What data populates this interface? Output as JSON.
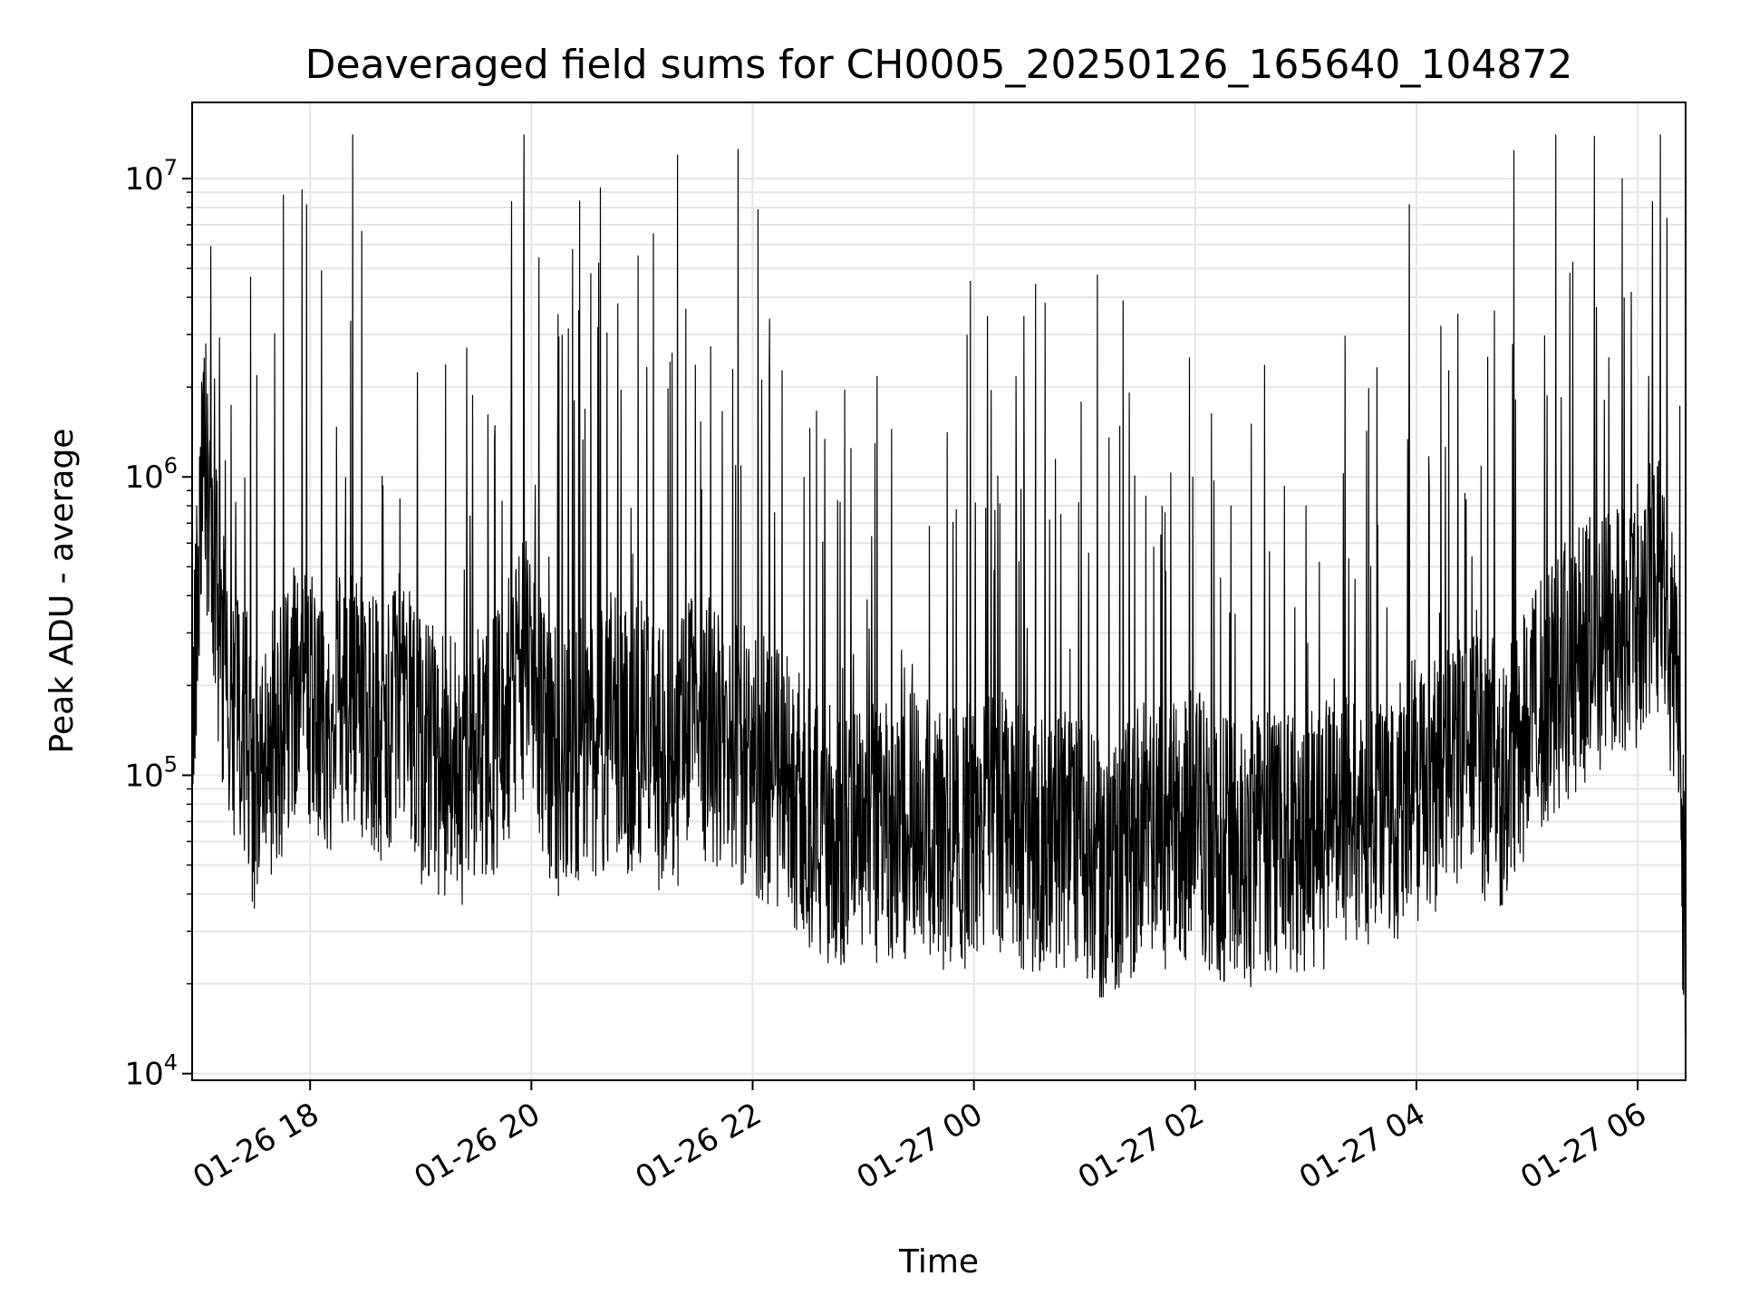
{
  "chart_data": {
    "type": "line",
    "title": "Deaveraged field sums for CH0005_20250126_165640_104872",
    "xlabel": "Time",
    "ylabel": "Peak ADU - average",
    "yscale": "log",
    "ylim": [
      9500,
      18000000
    ],
    "xlim": [
      "2025-01-26 16:56",
      "2025-01-27 06:26"
    ],
    "grid": true,
    "line_color": "#000000",
    "grid_color": "#e6e6e6",
    "x_ticks": [
      {
        "value": "2025-01-26 18:00",
        "label": "01-26 18"
      },
      {
        "value": "2025-01-26 20:00",
        "label": "01-26 20"
      },
      {
        "value": "2025-01-26 22:00",
        "label": "01-26 22"
      },
      {
        "value": "2025-01-27 00:00",
        "label": "01-27 00"
      },
      {
        "value": "2025-01-27 02:00",
        "label": "01-27 02"
      },
      {
        "value": "2025-01-27 04:00",
        "label": "01-27 04"
      },
      {
        "value": "2025-01-27 06:00",
        "label": "01-27 06"
      }
    ],
    "y_ticks": [
      {
        "value": 10000,
        "base": "10",
        "exp": "4"
      },
      {
        "value": 100000,
        "base": "10",
        "exp": "5"
      },
      {
        "value": 1000000,
        "base": "10",
        "exp": "6"
      },
      {
        "value": 10000000,
        "base": "10",
        "exp": "7"
      }
    ],
    "series": [
      {
        "x": [
          "2025-01-26 16:56",
          "2025-01-26 17:03",
          "2025-01-26 17:08",
          "2025-01-26 17:13",
          "2025-01-26 17:18",
          "2025-01-26 17:24",
          "2025-01-26 17:30",
          "2025-01-26 17:36",
          "2025-01-26 17:42",
          "2025-01-26 17:48",
          "2025-01-26 18:00",
          "2025-01-26 18:10",
          "2025-01-26 18:20",
          "2025-01-26 18:30",
          "2025-01-26 18:40",
          "2025-01-26 18:50",
          "2025-01-26 19:00",
          "2025-01-26 19:10",
          "2025-01-26 19:20",
          "2025-01-26 19:30",
          "2025-01-26 19:40",
          "2025-01-26 19:50",
          "2025-01-26 19:58",
          "2025-01-26 20:05",
          "2025-01-26 20:15",
          "2025-01-26 20:25",
          "2025-01-26 20:35",
          "2025-01-26 20:45",
          "2025-01-26 20:51",
          "2025-01-26 21:00",
          "2025-01-26 21:10",
          "2025-01-26 21:20",
          "2025-01-26 21:30",
          "2025-01-26 21:40",
          "2025-01-26 21:50",
          "2025-01-26 22:00",
          "2025-01-26 22:15",
          "2025-01-26 22:30",
          "2025-01-26 22:45",
          "2025-01-26 23:00",
          "2025-01-26 23:15",
          "2025-01-26 23:30",
          "2025-01-26 23:45",
          "2025-01-27 00:00",
          "2025-01-27 00:15",
          "2025-01-27 00:30",
          "2025-01-27 00:45",
          "2025-01-27 01:00",
          "2025-01-27 01:15",
          "2025-01-27 01:30",
          "2025-01-27 01:45",
          "2025-01-27 02:00",
          "2025-01-27 02:15",
          "2025-01-27 02:30",
          "2025-01-27 02:45",
          "2025-01-27 03:00",
          "2025-01-27 03:15",
          "2025-01-27 03:30",
          "2025-01-27 03:45",
          "2025-01-27 04:00",
          "2025-01-27 04:15",
          "2025-01-27 04:30",
          "2025-01-27 04:45",
          "2025-01-27 04:53",
          "2025-01-27 05:00",
          "2025-01-27 05:15",
          "2025-01-27 05:30",
          "2025-01-27 05:45",
          "2025-01-27 06:00",
          "2025-01-27 06:10",
          "2025-01-27 06:20",
          "2025-01-27 06:26"
        ],
        "y": [
          200000,
          1200000,
          450000,
          250000,
          150000,
          160000,
          90000,
          140000,
          120000,
          180000,
          170000,
          150000,
          200000,
          160000,
          140000,
          200000,
          120000,
          110000,
          100000,
          110000,
          130000,
          180000,
          250000,
          140000,
          110000,
          120000,
          115000,
          160000,
          130000,
          140000,
          110000,
          120000,
          150000,
          140000,
          120000,
          110000,
          100000,
          75000,
          60000,
          60000,
          65000,
          70000,
          60000,
          65000,
          70000,
          60000,
          60000,
          55000,
          45000,
          65000,
          60000,
          70000,
          55000,
          55000,
          60000,
          60000,
          65000,
          70000,
          75000,
          90000,
          100000,
          110000,
          100000,
          120000,
          150000,
          200000,
          250000,
          300000,
          350000,
          450000,
          250000,
          30000
        ]
      }
    ]
  }
}
